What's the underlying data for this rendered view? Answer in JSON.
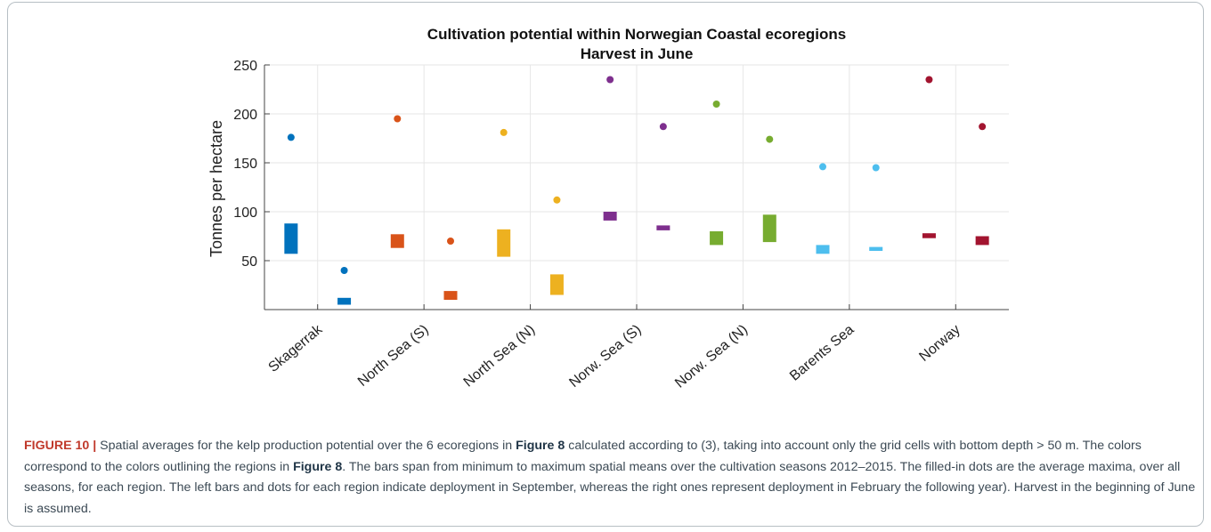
{
  "chart_data": {
    "type": "range-bar-scatter",
    "title": "Cultivation potential within Norwegian Coastal ecoregions",
    "subtitle": "Harvest in June",
    "xlabel": "",
    "ylabel": "Tonnes per hectare",
    "ylim": [
      0,
      250
    ],
    "yticks": [
      50,
      100,
      150,
      200,
      250
    ],
    "grid": true,
    "categories": [
      "Skagerrak",
      "North Sea (S)",
      "North Sea (N)",
      "Norw. Sea (S)",
      "Norw. Sea (N)",
      "Barents Sea",
      "Norway"
    ],
    "colors": [
      "#0072bd",
      "#d95319",
      "#edb120",
      "#7e2f8e",
      "#77ac30",
      "#4dbeee",
      "#a2142f"
    ],
    "series": [
      {
        "deployment": "September",
        "bar_min": [
          57,
          63,
          54,
          91,
          66,
          57,
          73
        ],
        "bar_max": [
          88,
          77,
          82,
          100,
          80,
          66,
          78
        ],
        "dot": [
          176,
          195,
          181,
          235,
          210,
          146,
          235
        ]
      },
      {
        "deployment": "February",
        "bar_min": [
          5,
          10,
          15,
          81,
          69,
          60,
          66
        ],
        "bar_max": [
          12,
          19,
          36,
          86,
          97,
          64,
          75
        ],
        "dot": [
          40,
          70,
          112,
          187,
          174,
          145,
          187
        ]
      }
    ]
  },
  "caption": {
    "label": "FIGURE 10 |",
    "segments": [
      {
        "text": " Spatial averages for the kelp production potential over the 6 ecoregions in ",
        "bold": false
      },
      {
        "text": "Figure 8",
        "bold": true
      },
      {
        "text": " calculated according to (3), taking into account only the grid cells with bottom depth > 50 m. The colors correspond to the colors outlining the regions in ",
        "bold": false
      },
      {
        "text": "Figure 8",
        "bold": true
      },
      {
        "text": ". The bars span from minimum to maximum spatial means over the cultivation seasons 2012–2015. The filled-in dots are the average maxima, over all seasons, for each region. The left bars and dots for each region indicate deployment in September, whereas the right ones represent deployment in February the following year). Harvest in the beginning of June is assumed.",
        "bold": false
      }
    ]
  }
}
